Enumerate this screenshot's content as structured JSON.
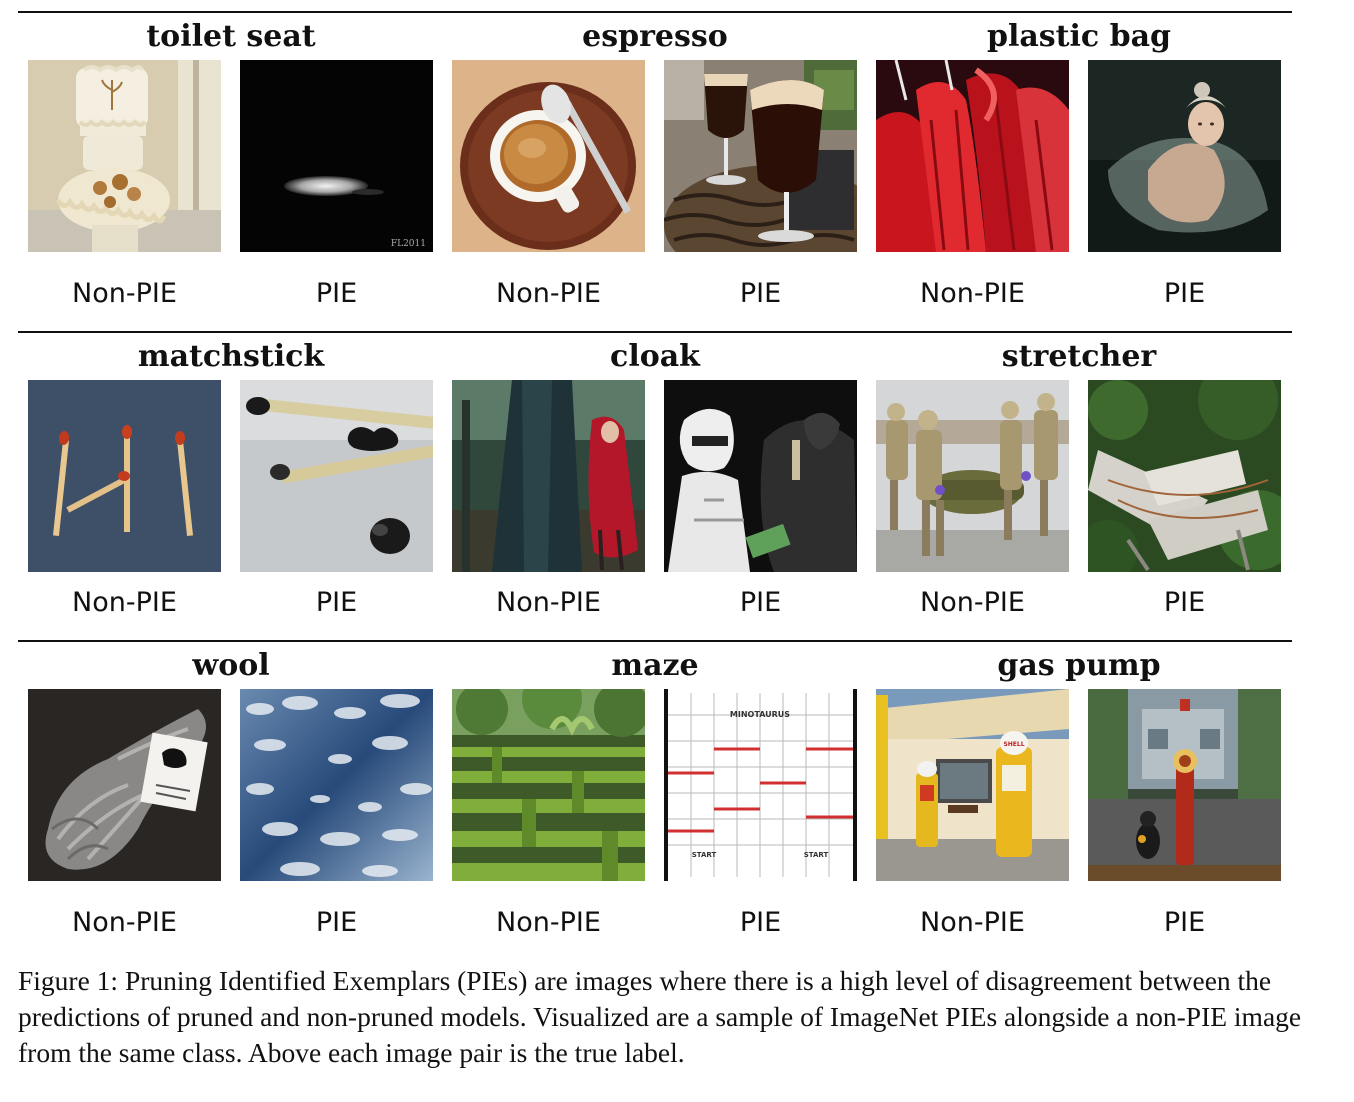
{
  "labels": {
    "non_pie": "Non-PIE",
    "pie": "PIE"
  },
  "rows": [
    {
      "groups": [
        {
          "label": "toilet seat"
        },
        {
          "label": "espresso"
        },
        {
          "label": "plastic bag"
        }
      ]
    },
    {
      "groups": [
        {
          "label": "matchstick"
        },
        {
          "label": "cloak"
        },
        {
          "label": "stretcher"
        }
      ]
    },
    {
      "groups": [
        {
          "label": "wool"
        },
        {
          "label": "maze"
        },
        {
          "label": "gas pump"
        }
      ]
    }
  ],
  "images": {
    "pie_toilet_watermark": "FL2011",
    "pie_maze_top": "MINOTAURUS",
    "pie_maze_start": "START",
    "nonpie_gas_sign": "SHELL"
  },
  "caption": "Figure 1: Pruning Identified Exemplars (PIEs) are images where there is a high level of disagreement between the predictions of pruned and non-pruned models. Visualized are a sample of ImageNet PIEs alongside a non-PIE image from the same class. Above each image pair is the true label."
}
